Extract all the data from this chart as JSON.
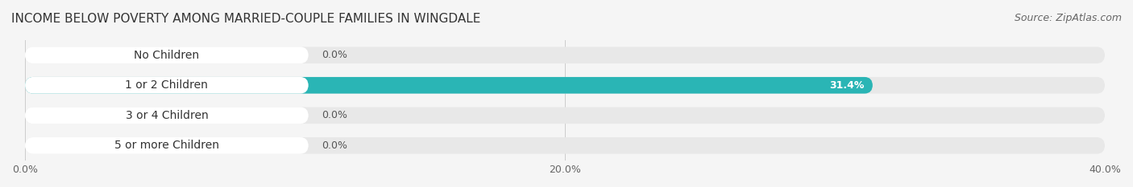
{
  "title": "INCOME BELOW POVERTY AMONG MARRIED-COUPLE FAMILIES IN WINGDALE",
  "source": "Source: ZipAtlas.com",
  "categories": [
    "No Children",
    "1 or 2 Children",
    "3 or 4 Children",
    "5 or more Children"
  ],
  "values": [
    0.0,
    31.4,
    0.0,
    0.0
  ],
  "bar_colors": [
    "#c9a8d4",
    "#2ab5b5",
    "#a8a8e0",
    "#f4a0b8"
  ],
  "label_bg_colors": [
    "#e8d8f0",
    "#2ab5b5",
    "#d8d8f4",
    "#f8c0d0"
  ],
  "xlim": [
    0,
    40
  ],
  "xticks": [
    0.0,
    20.0,
    40.0
  ],
  "xtick_labels": [
    "0.0%",
    "20.0%",
    "40.0%"
  ],
  "background_color": "#f5f5f5",
  "bar_bg_color": "#e8e8e8",
  "title_fontsize": 11,
  "source_fontsize": 9,
  "label_fontsize": 10,
  "value_fontsize": 9,
  "bar_height": 0.55,
  "value_label_color_inside": "#ffffff",
  "value_label_color_outside": "#555555"
}
